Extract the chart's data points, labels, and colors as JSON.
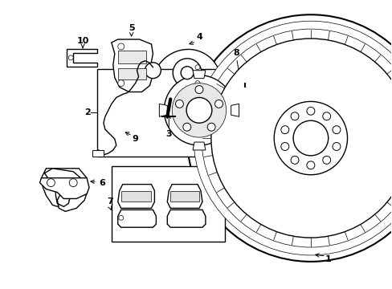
{
  "bg_color": "#ffffff",
  "line_color": "#000000",
  "line_width": 1.0,
  "thin_line": 0.6,
  "fig_width": 4.89,
  "fig_height": 3.6,
  "dpi": 100,
  "font_size": 8,
  "arrow_color": "#000000"
}
